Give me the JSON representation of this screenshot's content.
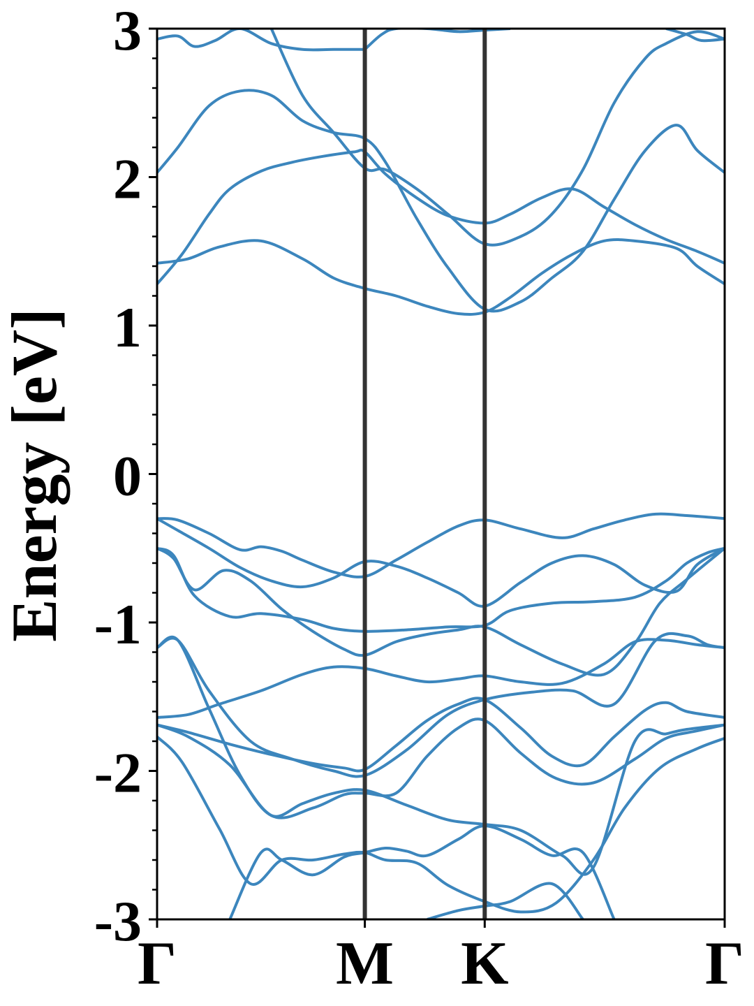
{
  "chart_data": {
    "type": "line",
    "title": "",
    "xlabel": "",
    "ylabel": "Energy [eV]",
    "ylim": [
      -3,
      3
    ],
    "yticks": [
      "-3",
      "-2",
      "-1",
      "0",
      "1",
      "2",
      "3"
    ],
    "kpoints": [
      {
        "label": "Γ",
        "x": 0
      },
      {
        "label": "M",
        "x": 1.0
      },
      {
        "label": "K",
        "x": 1.577
      },
      {
        "label": "Γ",
        "x": 2.732
      }
    ],
    "grid": false,
    "series_color": "#3c86bd",
    "divider_color": "#333333",
    "series": [
      {
        "x": [
          0,
          0.1,
          0.25,
          0.4,
          0.5,
          0.6,
          0.7,
          0.85,
          1.0,
          1.15,
          1.3,
          1.45,
          1.577,
          1.75,
          1.95,
          2.1,
          2.25,
          2.4,
          2.55,
          2.732
        ],
        "values": [
          -0.3,
          -0.31,
          -0.4,
          -0.51,
          -0.49,
          -0.52,
          -0.58,
          -0.66,
          -0.69,
          -0.58,
          -0.46,
          -0.35,
          -0.31,
          -0.37,
          -0.43,
          -0.37,
          -0.31,
          -0.27,
          -0.28,
          -0.3
        ]
      },
      {
        "x": [
          0,
          0.1,
          0.25,
          0.4,
          0.55,
          0.7,
          0.85,
          1.0,
          1.15,
          1.3,
          1.45,
          1.577,
          1.75,
          1.9,
          2.05,
          2.2,
          2.35,
          2.5,
          2.6,
          2.732
        ],
        "values": [
          -0.3,
          -0.38,
          -0.5,
          -0.63,
          -0.72,
          -0.76,
          -0.7,
          -0.59,
          -0.62,
          -0.7,
          -0.8,
          -0.89,
          -0.73,
          -0.6,
          -0.55,
          -0.61,
          -0.75,
          -0.79,
          -0.61,
          -0.5
        ]
      },
      {
        "x": [
          0,
          0.08,
          0.18,
          0.35,
          0.5,
          0.7,
          0.85,
          1.0,
          1.2,
          1.4,
          1.577,
          1.7,
          1.9,
          2.1,
          2.3,
          2.45,
          2.55,
          2.65,
          2.732
        ],
        "values": [
          -0.5,
          -0.55,
          -0.82,
          -0.96,
          -0.94,
          -0.98,
          -1.04,
          -1.06,
          -1.05,
          -1.03,
          -1.02,
          -0.92,
          -0.87,
          -0.86,
          -0.83,
          -0.72,
          -0.6,
          -0.53,
          -0.5
        ]
      },
      {
        "x": [
          0,
          0.08,
          0.18,
          0.32,
          0.45,
          0.6,
          0.75,
          0.9,
          1.0,
          1.15,
          1.3,
          1.45,
          1.577,
          1.75,
          1.95,
          2.15,
          2.3,
          2.42,
          2.55,
          2.732
        ],
        "values": [
          -0.5,
          -0.57,
          -0.78,
          -0.65,
          -0.72,
          -0.91,
          -1.06,
          -1.18,
          -1.22,
          -1.13,
          -1.08,
          -1.05,
          -1.03,
          -1.15,
          -1.28,
          -1.35,
          -1.14,
          -0.87,
          -0.71,
          -0.5
        ]
      },
      {
        "x": [
          0,
          0.1,
          0.25,
          0.45,
          0.65,
          0.85,
          1.0,
          1.2,
          1.4,
          1.577,
          1.8,
          2.0,
          2.2,
          2.4,
          2.55,
          2.65,
          2.732
        ],
        "values": [
          -1.17,
          -1.12,
          -1.46,
          -1.8,
          -1.92,
          -2.0,
          -2.03,
          -1.86,
          -1.62,
          -1.52,
          -1.47,
          -1.46,
          -1.55,
          -1.12,
          -1.09,
          -1.15,
          -1.17
        ]
      },
      {
        "x": [
          0,
          0.1,
          0.25,
          0.4,
          0.55,
          0.7,
          0.85,
          1.0,
          1.2,
          1.4,
          1.577,
          1.75,
          1.95,
          2.1,
          2.3,
          2.45,
          2.55,
          2.732
        ],
        "values": [
          -1.17,
          -1.12,
          -1.58,
          -2.03,
          -2.3,
          -2.22,
          -2.15,
          -2.13,
          -2.23,
          -2.33,
          -2.36,
          -2.4,
          -2.57,
          -2.65,
          -1.8,
          -1.75,
          -1.72,
          -1.69
        ]
      },
      {
        "x": [
          0,
          0.15,
          0.3,
          0.5,
          0.7,
          0.85,
          1.0,
          1.15,
          1.3,
          1.45,
          1.577,
          1.75,
          1.95,
          2.15,
          2.3,
          2.45,
          2.6,
          2.732
        ],
        "values": [
          -1.64,
          -1.62,
          -1.55,
          -1.46,
          -1.35,
          -1.3,
          -1.31,
          -1.36,
          -1.4,
          -1.38,
          -1.36,
          -1.4,
          -1.41,
          -1.28,
          -1.13,
          -1.12,
          -1.15,
          -1.17
        ]
      },
      {
        "x": [
          0,
          0.15,
          0.35,
          0.55,
          0.75,
          0.9,
          1.0,
          1.15,
          1.3,
          1.45,
          1.577,
          1.75,
          1.9,
          2.05,
          2.2,
          2.35,
          2.45,
          2.55,
          2.732
        ],
        "values": [
          -1.69,
          -1.74,
          -1.82,
          -1.89,
          -1.95,
          -1.98,
          -1.99,
          -1.83,
          -1.66,
          -1.55,
          -1.52,
          -1.71,
          -1.9,
          -1.96,
          -1.77,
          -1.59,
          -1.54,
          -1.6,
          -1.64
        ]
      },
      {
        "x": [
          0,
          0.15,
          0.35,
          0.55,
          0.75,
          0.9,
          1.0,
          1.15,
          1.3,
          1.45,
          1.577,
          1.75,
          1.92,
          2.1,
          2.3,
          2.45,
          2.6,
          2.732
        ],
        "values": [
          -1.69,
          -1.77,
          -1.96,
          -2.3,
          -2.25,
          -2.16,
          -2.15,
          -2.15,
          -1.9,
          -1.71,
          -1.66,
          -1.88,
          -2.05,
          -2.08,
          -1.92,
          -1.78,
          -1.73,
          -1.69
        ]
      },
      {
        "x": [
          0,
          0.12,
          0.3,
          0.45,
          0.6,
          0.75,
          0.9,
          1.0,
          1.1,
          1.25,
          1.4,
          1.577,
          1.75,
          1.92,
          2.1,
          2.25,
          2.42,
          2.6,
          2.732
        ],
        "values": [
          -1.77,
          -1.94,
          -2.39,
          -2.76,
          -2.6,
          -2.6,
          -2.56,
          -2.55,
          -2.6,
          -2.62,
          -2.77,
          -2.88,
          -2.95,
          -2.89,
          -2.6,
          -2.25,
          -1.98,
          -1.85,
          -1.78
        ]
      },
      {
        "x": [
          0.35,
          0.5,
          0.6,
          0.75,
          0.9,
          1.0,
          1.1,
          1.2,
          1.3,
          1.45,
          1.577,
          1.75,
          1.9,
          2.05,
          2.2
        ],
        "values": [
          -3.0,
          -2.55,
          -2.6,
          -2.7,
          -2.58,
          -2.55,
          -2.52,
          -2.54,
          -2.57,
          -2.46,
          -2.37,
          -2.46,
          -2.57,
          -2.55,
          -3.0
        ]
      },
      {
        "x": [
          1.3,
          1.45,
          1.577,
          1.7,
          1.9,
          2.05
        ],
        "values": [
          -3.0,
          -2.94,
          -2.91,
          -2.88,
          -2.76,
          -3.0
        ]
      },
      {
        "x": [
          0,
          0.12,
          0.25,
          0.35,
          0.5,
          0.65,
          0.8,
          0.95,
          1.0,
          1.1,
          1.25,
          1.4,
          1.577,
          1.7,
          1.85,
          2.0,
          2.15,
          2.3,
          2.45,
          2.6,
          2.732
        ],
        "values": [
          1.28,
          1.48,
          1.75,
          1.92,
          2.04,
          2.1,
          2.14,
          2.17,
          2.17,
          2.02,
          1.86,
          1.74,
          1.69,
          1.75,
          1.86,
          1.92,
          1.8,
          1.68,
          1.58,
          1.5,
          1.42
        ]
      },
      {
        "x": [
          0,
          0.15,
          0.3,
          0.5,
          0.7,
          0.85,
          1.0,
          1.15,
          1.3,
          1.45,
          1.577,
          1.7,
          1.85,
          2.0,
          2.15,
          2.3,
          2.5,
          2.6,
          2.732
        ],
        "values": [
          1.42,
          1.45,
          1.53,
          1.57,
          1.45,
          1.32,
          1.25,
          1.2,
          1.13,
          1.08,
          1.09,
          1.19,
          1.35,
          1.48,
          1.57,
          1.57,
          1.52,
          1.4,
          1.28
        ]
      },
      {
        "x": [
          0,
          0.1,
          0.25,
          0.4,
          0.55,
          0.7,
          0.85,
          1.0,
          1.1,
          1.25,
          1.4,
          1.577,
          1.75,
          1.9,
          2.05,
          2.2,
          2.35,
          2.5,
          2.6,
          2.732
        ],
        "values": [
          2.03,
          2.2,
          2.48,
          2.58,
          2.55,
          2.38,
          2.3,
          2.26,
          2.1,
          1.72,
          1.39,
          1.11,
          1.16,
          1.32,
          1.5,
          1.85,
          2.18,
          2.35,
          2.18,
          2.03
        ]
      },
      {
        "x": [
          0.55,
          0.7,
          0.85,
          1.0,
          1.1,
          1.25,
          1.4,
          1.577,
          1.75,
          1.9,
          2.05,
          2.2,
          2.35,
          2.45,
          2.6,
          2.732
        ],
        "values": [
          3.0,
          2.55,
          2.3,
          2.06,
          2.05,
          1.92,
          1.75,
          1.55,
          1.6,
          1.75,
          2.05,
          2.5,
          2.8,
          2.9,
          2.98,
          2.93
        ]
      },
      {
        "x": [
          0,
          0.1,
          0.18,
          0.28,
          0.4,
          0.55,
          0.7,
          0.85,
          1.0
        ],
        "values": [
          2.93,
          2.95,
          2.88,
          2.92,
          3.0,
          2.9,
          2.86,
          2.86,
          2.86
        ]
      },
      {
        "x": [
          1.0,
          1.08,
          1.15,
          1.3,
          1.45,
          1.577,
          1.7
        ],
        "values": [
          2.86,
          2.96,
          3.0,
          3.0,
          2.98,
          2.99,
          3.0
        ]
      },
      {
        "x": [
          2.45,
          2.55,
          2.62,
          2.732
        ],
        "values": [
          3.0,
          2.96,
          2.92,
          2.93
        ]
      }
    ]
  }
}
